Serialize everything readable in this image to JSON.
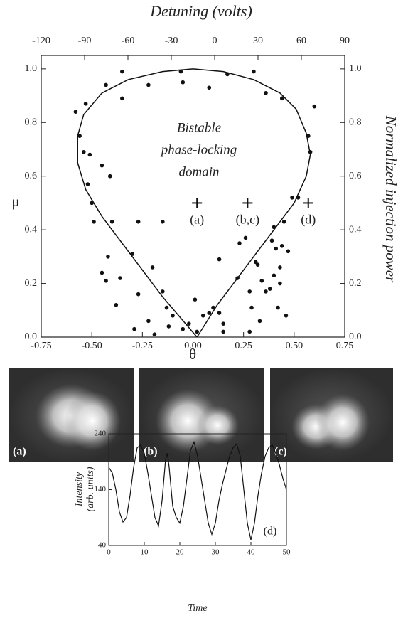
{
  "chart_data": [
    {
      "type": "scatter",
      "x2label": "Detuning (volts)",
      "xlabel": "θ",
      "ylabel": "μ",
      "y2label": "Normalized injection power",
      "xlim": [
        -0.75,
        0.75
      ],
      "xticks": [
        -0.75,
        {
          "value": -0.5,
          "label": "-0.50"
        },
        -0.25,
        {
          "value": 0,
          "label": "0.00"
        },
        0.25,
        {
          "value": 0.5,
          "label": "0.50"
        },
        0.75
      ],
      "ylim": [
        0,
        1.05
      ],
      "yticks": [
        {
          "value": 0,
          "label": "0.0"
        },
        0.2,
        0.4,
        0.6,
        0.8,
        {
          "value": 1,
          "label": "1.0"
        }
      ],
      "x2lim": [
        -120,
        90
      ],
      "x2ticks": [
        -120,
        -90,
        -60,
        -30,
        0,
        30,
        60,
        90
      ],
      "y2lim": [
        0,
        1.05
      ],
      "y2ticks": [
        {
          "value": 0,
          "label": "0.0"
        },
        0.2,
        0.4,
        0.6,
        0.8,
        {
          "value": 1,
          "label": "1.0"
        }
      ],
      "annotation": [
        "Bistable",
        "phase-locking",
        "domain"
      ],
      "markers": [
        {
          "x": 0.02,
          "y": 0.5,
          "label": "(a)"
        },
        {
          "x": 0.27,
          "y": 0.5,
          "label": "(b,c)"
        },
        {
          "x": 0.57,
          "y": 0.5,
          "label": "(d)"
        }
      ],
      "series": [
        {
          "type": "scatter",
          "color": "#111",
          "x": [
            -0.58,
            -0.56,
            -0.53,
            -0.54,
            -0.51,
            -0.52,
            -0.5,
            -0.49,
            -0.45,
            -0.43,
            -0.41,
            -0.4,
            -0.42,
            -0.45,
            -0.43,
            -0.35,
            -0.35,
            -0.36,
            -0.38,
            -0.3,
            -0.27,
            -0.27,
            -0.29,
            -0.22,
            -0.2,
            -0.15,
            -0.15,
            -0.22,
            -0.19,
            -0.13,
            -0.1,
            -0.12,
            -0.06,
            -0.05,
            0.02,
            0.01,
            -0.02,
            0.05,
            0.08,
            0.1,
            0.13,
            0.13,
            -0.05,
            0.08,
            0.15,
            0.15,
            0.17,
            0.22,
            0.23,
            0.26,
            0.28,
            0.28,
            0.29,
            0.3,
            0.31,
            0.32,
            0.33,
            0.34,
            0.36,
            0.36,
            0.38,
            0.39,
            0.4,
            0.4,
            0.41,
            0.42,
            0.43,
            0.43,
            0.44,
            0.45,
            0.46,
            0.49,
            0.52,
            0.57,
            0.58,
            0.6,
            0.47,
            0.44
          ],
          "values": [
            0.84,
            0.75,
            0.87,
            0.69,
            0.68,
            0.57,
            0.5,
            0.43,
            0.64,
            0.94,
            0.6,
            0.43,
            0.3,
            0.24,
            0.21,
            0.99,
            0.89,
            0.22,
            0.12,
            0.31,
            0.43,
            0.16,
            0.03,
            0.94,
            0.26,
            0.43,
            0.17,
            0.06,
            0.01,
            0.11,
            0.08,
            0.04,
            0.99,
            0.03,
            0.02,
            0.14,
            0.05,
            0.08,
            0.09,
            0.11,
            0.09,
            0.29,
            0.95,
            0.93,
            0.02,
            0.05,
            0.98,
            0.22,
            0.35,
            0.37,
            0.17,
            0.02,
            0.11,
            0.99,
            0.28,
            0.27,
            0.06,
            0.21,
            0.17,
            0.91,
            0.18,
            0.36,
            0.41,
            0.23,
            0.33,
            0.11,
            0.26,
            0.2,
            0.89,
            0.43,
            0.08,
            0.52,
            0.52,
            0.75,
            0.69,
            0.86,
            0.32,
            0.34
          ]
        },
        {
          "type": "line",
          "color": "#111",
          "x": [
            0.02,
            -0.15,
            -0.3,
            -0.45,
            -0.53,
            -0.57,
            -0.57,
            -0.54,
            -0.45,
            -0.32,
            -0.15,
            0,
            0.15,
            0.3,
            0.43,
            0.51,
            0.56,
            0.58,
            0.56,
            0.5,
            0.4,
            0.25,
            0.12,
            0.02
          ],
          "values": [
            0,
            0.15,
            0.3,
            0.45,
            0.55,
            0.65,
            0.75,
            0.83,
            0.91,
            0.96,
            0.99,
            1,
            0.99,
            0.96,
            0.91,
            0.85,
            0.76,
            0.68,
            0.6,
            0.5,
            0.4,
            0.25,
            0.12,
            0
          ]
        }
      ]
    },
    {
      "type": "line",
      "xlabel": "Time",
      "ylabel": [
        "Intensity",
        "(arb. units)"
      ],
      "annotation": "(d)",
      "xlim": [
        0,
        50
      ],
      "xticks": [
        0,
        10,
        20,
        30,
        40,
        50
      ],
      "ylim": [
        40,
        240
      ],
      "yticks": [
        40,
        140,
        240
      ],
      "series": [
        {
          "color": "#111",
          "x": [
            0,
            1,
            2,
            3,
            4,
            5,
            6,
            7,
            8,
            9,
            10,
            11,
            12,
            13,
            14,
            15,
            16,
            16.5,
            17,
            18,
            19,
            20,
            21,
            22,
            23,
            24,
            25,
            26,
            27,
            28,
            29,
            29.5,
            30,
            31,
            32,
            33,
            34,
            35,
            36,
            37,
            38,
            39,
            40,
            41,
            42,
            43,
            44,
            45,
            46,
            47,
            48,
            49,
            50
          ],
          "values": [
            180,
            170,
            140,
            100,
            82,
            90,
            130,
            180,
            215,
            220,
            205,
            170,
            130,
            90,
            75,
            120,
            195,
            205,
            180,
            110,
            90,
            80,
            110,
            160,
            210,
            225,
            200,
            160,
            120,
            80,
            60,
            70,
            80,
            120,
            150,
            175,
            200,
            215,
            222,
            200,
            140,
            80,
            50,
            80,
            130,
            170,
            200,
            215,
            220,
            205,
            185,
            160,
            140
          ]
        }
      ]
    }
  ],
  "images": {
    "labels": [
      "(a)",
      "(b)",
      "(c)"
    ]
  }
}
